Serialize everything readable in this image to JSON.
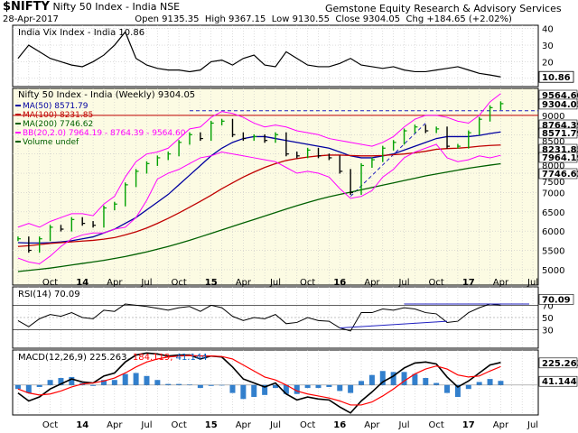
{
  "header": {
    "symbol": "$NIFTY",
    "name": "Nifty 50 Index - India",
    "exchange": "NSE",
    "source": "Gemstone Equity Research & Advisory Services",
    "date": "28-Apr-2017",
    "open_label": "Open",
    "open": "9135.35",
    "high_label": "High",
    "high": "9367.15",
    "low_label": "Low",
    "low": "9130.55",
    "close_label": "Close",
    "close": "9304.05",
    "chg_label": "Chg",
    "chg": "+184.65 (+2.02%)"
  },
  "colors": {
    "price_bg": "#fcfbe3",
    "ind_bg": "#ffffff",
    "grid": "#c8c8c8",
    "up_bar": "#00a000",
    "down_bar": "#000000",
    "ma50": "#0000a0",
    "ma100": "#c00000",
    "ma200": "#006000",
    "bb": "#ff00ff",
    "macd": "#000000",
    "signal": "#ff0000",
    "hist": "#0060c0"
  },
  "chart_data": [
    {
      "type": "line",
      "panel": "vix",
      "legend": "India Vix Index - India 10.86",
      "yticks": [
        10,
        20,
        30,
        40
      ],
      "last_value_label": "10.86",
      "x": [
        "2013-07",
        "2013-08",
        "2013-09",
        "2013-10",
        "2013-11",
        "2013-12",
        "2014-01",
        "2014-02",
        "2014-03",
        "2014-04",
        "2014-05",
        "2014-06",
        "2014-07",
        "2014-08",
        "2014-09",
        "2014-10",
        "2014-11",
        "2014-12",
        "2015-01",
        "2015-02",
        "2015-03",
        "2015-04",
        "2015-05",
        "2015-06",
        "2015-07",
        "2015-08",
        "2015-09",
        "2015-10",
        "2015-11",
        "2015-12",
        "2016-01",
        "2016-02",
        "2016-03",
        "2016-04",
        "2016-05",
        "2016-06",
        "2016-07",
        "2016-08",
        "2016-09",
        "2016-10",
        "2016-11",
        "2016-12",
        "2017-01",
        "2017-02",
        "2017-03",
        "2017-04"
      ],
      "values": [
        22,
        30,
        26,
        22,
        20,
        18,
        17,
        20,
        24,
        30,
        38,
        22,
        18,
        16,
        15,
        15,
        14,
        15,
        20,
        21,
        18,
        22,
        24,
        18,
        17,
        26,
        22,
        18,
        17,
        17,
        19,
        22,
        18,
        17,
        16,
        17,
        15,
        14,
        14,
        15,
        16,
        17,
        15,
        13,
        12,
        10.86
      ]
    },
    {
      "type": "line",
      "panel": "price",
      "title": "Nifty 50 Index - India (Weekly) 9304.05",
      "yticks": [
        5000,
        5500,
        6000,
        6500,
        7000,
        7500,
        8000,
        8500,
        9000
      ],
      "xticks": [
        "Jul",
        "Aug",
        "Sep",
        "Oct",
        "Nov",
        "Dec",
        "14",
        "Feb",
        "Mar",
        "Apr",
        "May",
        "Jun",
        "Jul",
        "Aug",
        "Sep",
        "Oct",
        "Nov",
        "Dec",
        "15",
        "Feb",
        "Mar",
        "Apr",
        "May",
        "Jun",
        "Jul",
        "Aug",
        "Sep",
        "Oct",
        "Nov",
        "Dec",
        "16",
        "Feb",
        "Mar",
        "Apr",
        "May",
        "Jun",
        "Jul",
        "Aug",
        "Sep",
        "Oct",
        "Nov",
        "Dec",
        "17",
        "Feb",
        "Mar",
        "Apr",
        "May",
        "Jun",
        "Jul"
      ],
      "xtick_labels_shown": [
        "Oct",
        "14",
        "Apr",
        "Jul",
        "Oct",
        "15",
        "Apr",
        "Jul",
        "Oct",
        "16",
        "Apr",
        "Jul",
        "Oct",
        "17",
        "Apr",
        "Jul"
      ],
      "legend": [
        {
          "name": "MA(50) 8571.79",
          "color": "#0000a0"
        },
        {
          "name": "MA(100) 8231.85",
          "color": "#c00000"
        },
        {
          "name": "MA(200) 7746.62",
          "color": "#006000"
        },
        {
          "name": "BB(20,2.0) 7964.19 - 8764.39 - 9564.60",
          "color": "#ff00ff"
        },
        {
          "name": "Volume undef",
          "color": "#006000"
        }
      ],
      "value_labels": [
        "9564.60",
        "9304.05",
        "9000",
        "8764.39",
        "8571.79",
        "8500",
        "8231.85",
        "7964.19",
        "8000",
        "7746.62",
        "7500",
        "7000",
        "6500",
        "6000",
        "5500",
        "5000"
      ],
      "ylim": [
        4600,
        9700
      ],
      "resistance_level": 9000,
      "series": [
        {
          "name": "Close",
          "values": [
            5800,
            5500,
            5800,
            6100,
            6050,
            6300,
            6200,
            6150,
            6600,
            6700,
            7200,
            7550,
            7750,
            7900,
            8000,
            8300,
            8500,
            8400,
            8800,
            8850,
            8500,
            8400,
            8450,
            8350,
            8500,
            8000,
            7950,
            8100,
            7950,
            7900,
            7550,
            7000,
            7700,
            7850,
            8150,
            8300,
            8600,
            8700,
            8600,
            8650,
            8200,
            8200,
            8550,
            8900,
            9200,
            9304.05
          ]
        },
        {
          "name": "MA(50) 8571.79",
          "values": [
            5700,
            5690,
            5690,
            5700,
            5720,
            5750,
            5800,
            5850,
            5950,
            6050,
            6200,
            6350,
            6550,
            6750,
            6950,
            7200,
            7450,
            7700,
            7950,
            8150,
            8300,
            8400,
            8450,
            8450,
            8400,
            8350,
            8300,
            8250,
            8200,
            8150,
            8050,
            7950,
            7900,
            7900,
            7950,
            8000,
            8100,
            8200,
            8300,
            8400,
            8450,
            8450,
            8450,
            8480,
            8530,
            8571.79
          ]
        },
        {
          "name": "MA(100) 8231.85",
          "values": [
            5600,
            5620,
            5650,
            5680,
            5700,
            5720,
            5740,
            5760,
            5790,
            5830,
            5900,
            5980,
            6080,
            6200,
            6330,
            6470,
            6620,
            6770,
            6930,
            7100,
            7250,
            7400,
            7530,
            7650,
            7750,
            7830,
            7880,
            7920,
            7950,
            7970,
            7970,
            7960,
            7950,
            7950,
            7960,
            7980,
            8000,
            8030,
            8070,
            8120,
            8140,
            8150,
            8170,
            8200,
            8220,
            8231.85
          ]
        },
        {
          "name": "MA(200) 7746.62",
          "values": [
            4950,
            4980,
            5010,
            5040,
            5080,
            5120,
            5160,
            5200,
            5240,
            5290,
            5340,
            5400,
            5460,
            5530,
            5600,
            5680,
            5760,
            5850,
            5940,
            6030,
            6120,
            6210,
            6300,
            6390,
            6480,
            6570,
            6660,
            6740,
            6820,
            6890,
            6950,
            7010,
            7070,
            7130,
            7190,
            7250,
            7310,
            7370,
            7430,
            7480,
            7530,
            7580,
            7630,
            7670,
            7710,
            7746.62
          ]
        },
        {
          "name": "BB upper",
          "values": [
            6100,
            6200,
            6100,
            6250,
            6350,
            6450,
            6450,
            6400,
            6700,
            6900,
            7400,
            7800,
            8000,
            8050,
            8150,
            8400,
            8650,
            8700,
            8950,
            9100,
            9050,
            8950,
            8800,
            8700,
            8750,
            8700,
            8600,
            8550,
            8500,
            8400,
            8350,
            8300,
            8250,
            8200,
            8300,
            8450,
            8700,
            8900,
            9000,
            9000,
            8950,
            8850,
            8800,
            9000,
            9350,
            9564.6
          ]
        },
        {
          "name": "BB lower",
          "values": [
            5300,
            5200,
            5150,
            5350,
            5600,
            5800,
            5900,
            5950,
            5950,
            6050,
            6100,
            6350,
            6800,
            7350,
            7500,
            7600,
            7750,
            7900,
            7950,
            8050,
            8000,
            7950,
            7900,
            7850,
            7800,
            7650,
            7500,
            7550,
            7500,
            7400,
            7100,
            6850,
            6900,
            7050,
            7400,
            7600,
            7900,
            8050,
            8150,
            8250,
            7900,
            7800,
            7850,
            7950,
            7900,
            7964.19
          ]
        }
      ]
    },
    {
      "type": "line",
      "panel": "rsi",
      "legend": "RSI(14) 70.09",
      "yticks": [
        30,
        50,
        70
      ],
      "last_value_label": "70.09",
      "ylim": [
        0,
        100
      ],
      "values": [
        45,
        35,
        48,
        55,
        52,
        58,
        50,
        48,
        62,
        60,
        72,
        70,
        68,
        65,
        62,
        66,
        68,
        60,
        70,
        66,
        52,
        45,
        50,
        48,
        55,
        40,
        42,
        50,
        45,
        44,
        33,
        28,
        58,
        58,
        64,
        62,
        66,
        64,
        58,
        56,
        42,
        44,
        58,
        66,
        72,
        70.09
      ]
    },
    {
      "type": "line",
      "panel": "macd",
      "legend_name": "MACD(12,26,9)",
      "legend_values": [
        "225.263",
        "184.119",
        "41.144"
      ],
      "last_value_labels": [
        "225.263",
        "41.144"
      ],
      "ylim": [
        -300,
        350
      ],
      "series": [
        {
          "name": "MACD",
          "values": [
            -80,
            -160,
            -120,
            -40,
            10,
            60,
            30,
            20,
            90,
            120,
            230,
            300,
            320,
            310,
            290,
            300,
            300,
            260,
            290,
            280,
            180,
            60,
            20,
            -20,
            20,
            -90,
            -150,
            -120,
            -140,
            -150,
            -220,
            -280,
            -160,
            -70,
            30,
            90,
            170,
            220,
            230,
            210,
            80,
            -20,
            40,
            120,
            200,
            225.263
          ]
        },
        {
          "name": "Signal",
          "values": [
            -40,
            -80,
            -100,
            -90,
            -60,
            -20,
            10,
            20,
            40,
            70,
            120,
            180,
            230,
            260,
            280,
            290,
            295,
            290,
            290,
            285,
            260,
            200,
            140,
            80,
            50,
            0,
            -60,
            -90,
            -110,
            -130,
            -160,
            -200,
            -200,
            -170,
            -110,
            -40,
            40,
            110,
            160,
            190,
            160,
            100,
            80,
            90,
            140,
            184.119
          ]
        },
        {
          "name": "Histogram",
          "values": [
            -40,
            -80,
            -20,
            50,
            70,
            80,
            20,
            0,
            50,
            50,
            110,
            120,
            90,
            50,
            10,
            10,
            5,
            -30,
            0,
            -5,
            -80,
            -140,
            -120,
            -100,
            -30,
            -90,
            -90,
            -30,
            -30,
            -20,
            -60,
            -80,
            40,
            100,
            140,
            130,
            130,
            110,
            70,
            20,
            -80,
            -120,
            -40,
            30,
            60,
            41.144
          ]
        }
      ]
    }
  ]
}
